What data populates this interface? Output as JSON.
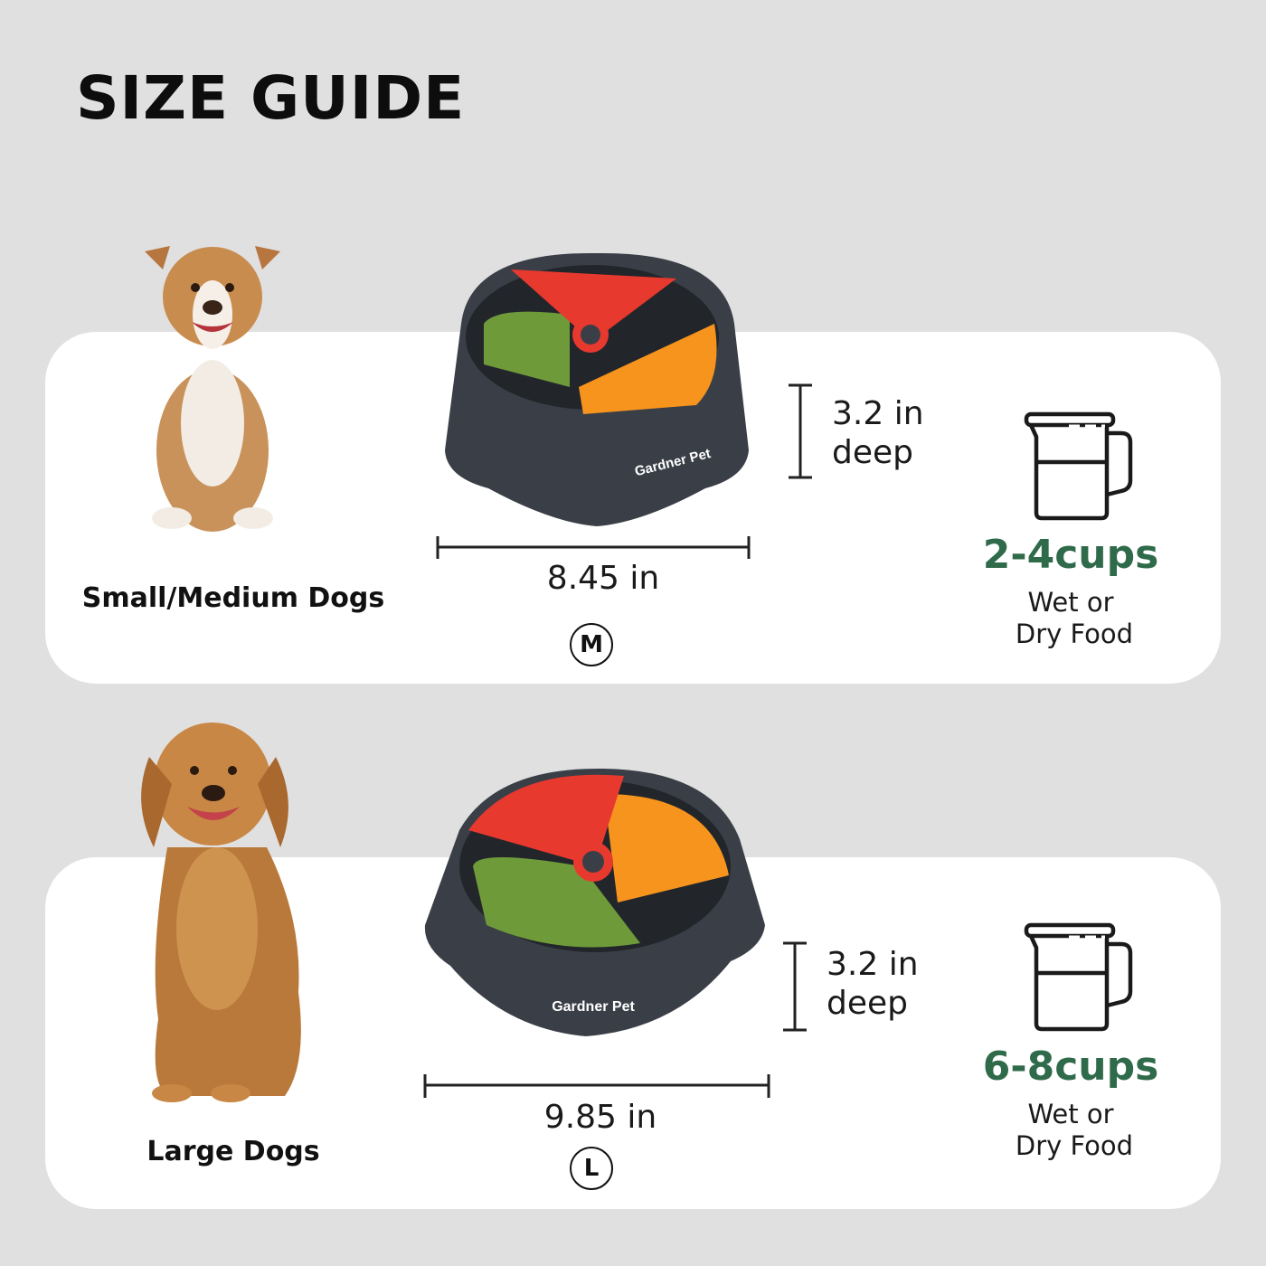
{
  "title": "SIZE GUIDE",
  "sizes": [
    {
      "dog_label": "Small/Medium Dogs",
      "brand": "Gardner Pet",
      "depth_value": "3.2 in",
      "depth_label": "deep",
      "width": "8.45 in",
      "size_code": "M",
      "capacity": "2-4cups",
      "food_line1": "Wet or",
      "food_line2": "Dry Food"
    },
    {
      "dog_label": "Large Dogs",
      "brand": "Gardner Pet",
      "depth_value": "3.2 in",
      "depth_label": "deep",
      "width": "9.85 in",
      "size_code": "L",
      "capacity": "6-8cups",
      "food_line1": "Wet or",
      "food_line2": "Dry Food"
    }
  ],
  "colors": {
    "background": "#e0e0e0",
    "card": "#ffffff",
    "capacity_green": "#2f6b4a",
    "bowl": "#3a3f47",
    "wedge_red": "#e8392f",
    "wedge_orange": "#f7941d",
    "wedge_green": "#6f9a3a"
  },
  "icons": [
    "dog-photo",
    "bowl-photo",
    "measuring-cup-icon"
  ]
}
